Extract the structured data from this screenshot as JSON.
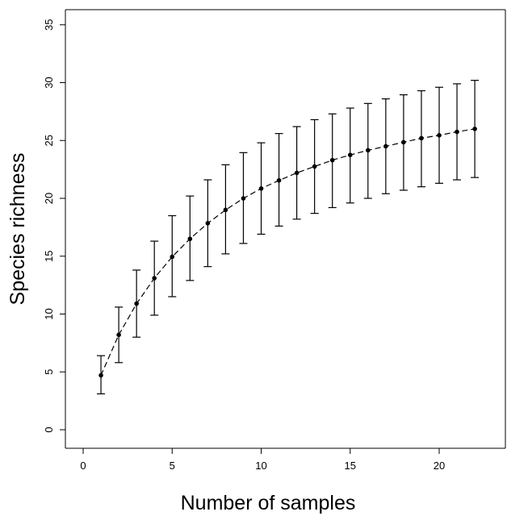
{
  "chart_data": {
    "type": "scatter",
    "title": "",
    "xlabel": "Number of samples",
    "ylabel": "Species richness",
    "xlim": [
      0,
      23
    ],
    "ylim": [
      0,
      35
    ],
    "x_ticks": [
      0,
      5,
      10,
      15,
      20
    ],
    "y_ticks": [
      0,
      5,
      10,
      15,
      20,
      25,
      30,
      35
    ],
    "grid": false,
    "legend": "none",
    "error_bars": true,
    "line_style": "dashed",
    "series": [
      {
        "x": [
          1,
          2,
          3,
          4,
          5,
          6,
          7,
          8,
          9,
          10,
          11,
          12,
          13,
          14,
          15,
          16,
          17,
          18,
          19,
          20,
          21,
          22
        ],
        "y": [
          4.7,
          8.2,
          10.9,
          13.1,
          14.95,
          16.5,
          17.85,
          19.0,
          20.0,
          20.85,
          21.55,
          22.2,
          22.75,
          23.3,
          23.75,
          24.15,
          24.5,
          24.85,
          25.2,
          25.45,
          25.75,
          26.0
        ],
        "lower": [
          3.1,
          5.8,
          8.0,
          9.9,
          11.5,
          12.9,
          14.1,
          15.2,
          16.1,
          16.9,
          17.6,
          18.2,
          18.7,
          19.2,
          19.6,
          20.0,
          20.4,
          20.7,
          21.0,
          21.3,
          21.6,
          21.8
        ],
        "upper": [
          6.4,
          10.6,
          13.8,
          16.3,
          18.5,
          20.2,
          21.6,
          22.9,
          23.95,
          24.8,
          25.6,
          26.2,
          26.8,
          27.3,
          27.8,
          28.2,
          28.6,
          28.95,
          29.3,
          29.6,
          29.9,
          30.2
        ]
      }
    ]
  }
}
